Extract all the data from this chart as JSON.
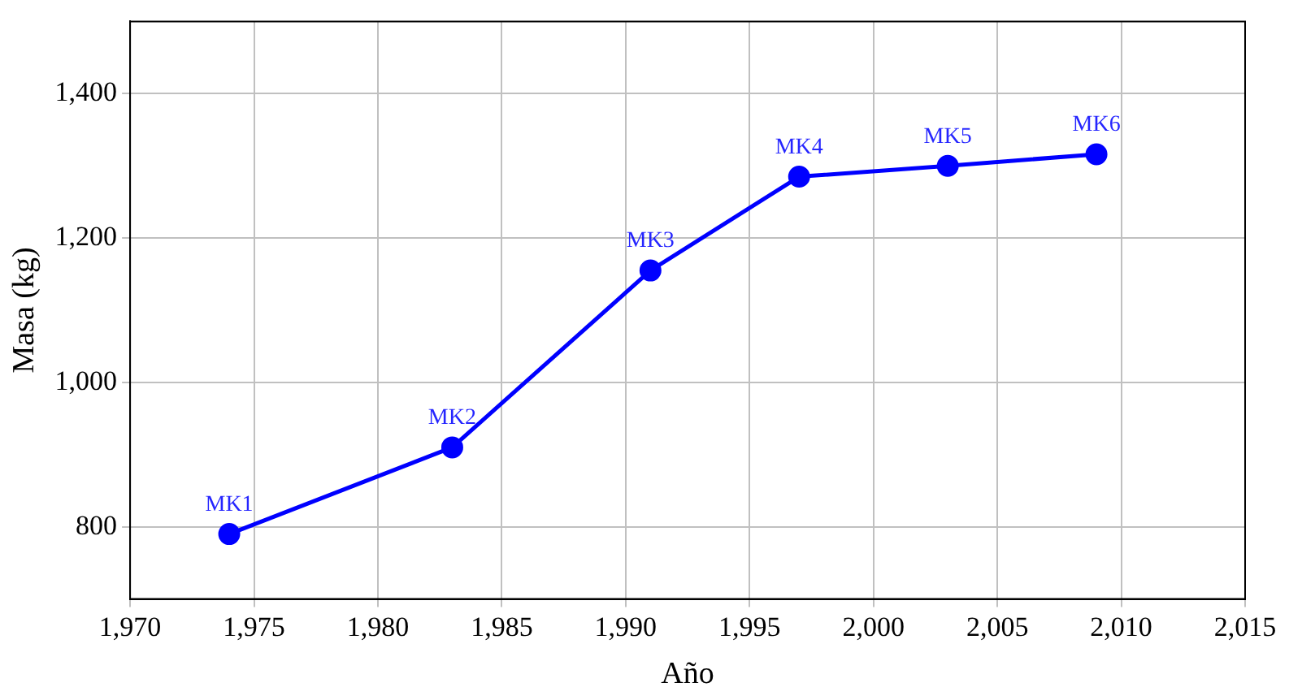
{
  "chart_data": {
    "type": "line",
    "xlabel": "Año",
    "ylabel": "Masa (kg)",
    "x": [
      1974,
      1983,
      1991,
      1997,
      2003,
      2009
    ],
    "series": [
      {
        "color": "#0000ff",
        "values": [
          790,
          910,
          1155,
          1285,
          1300,
          1316
        ]
      }
    ],
    "xlim": [
      1970,
      2015
    ],
    "ylim": [
      700,
      1500
    ],
    "xticks": [
      {
        "value": 1970,
        "label": "1,970"
      },
      {
        "value": 1975,
        "label": "1,975"
      },
      {
        "value": 1980,
        "label": "1,980"
      },
      {
        "value": 1985,
        "label": "1,985"
      },
      {
        "value": 1990,
        "label": "1,990"
      },
      {
        "value": 1995,
        "label": "1,995"
      },
      {
        "value": 2000,
        "label": "2,000"
      },
      {
        "value": 2005,
        "label": "2,005"
      },
      {
        "value": 2010,
        "label": "2,010"
      },
      {
        "value": 2015,
        "label": "2,015"
      }
    ],
    "yticks": [
      {
        "value": 800,
        "label": "800"
      },
      {
        "value": 1000,
        "label": "1,000"
      },
      {
        "value": 1200,
        "label": "1,200"
      },
      {
        "value": 1400,
        "label": "1,400"
      }
    ],
    "annotations": [
      {
        "text": "MK1",
        "x": 1974,
        "y": 790
      },
      {
        "text": "MK2",
        "x": 1983,
        "y": 910
      },
      {
        "text": "MK3",
        "x": 1991,
        "y": 1155
      },
      {
        "text": "MK4",
        "x": 1997,
        "y": 1285
      },
      {
        "text": "MK5",
        "x": 2003,
        "y": 1300
      },
      {
        "text": "MK6",
        "x": 2009,
        "y": 1316
      }
    ],
    "grid": true,
    "legend": false,
    "marker": "circle",
    "line_style": "solid"
  }
}
